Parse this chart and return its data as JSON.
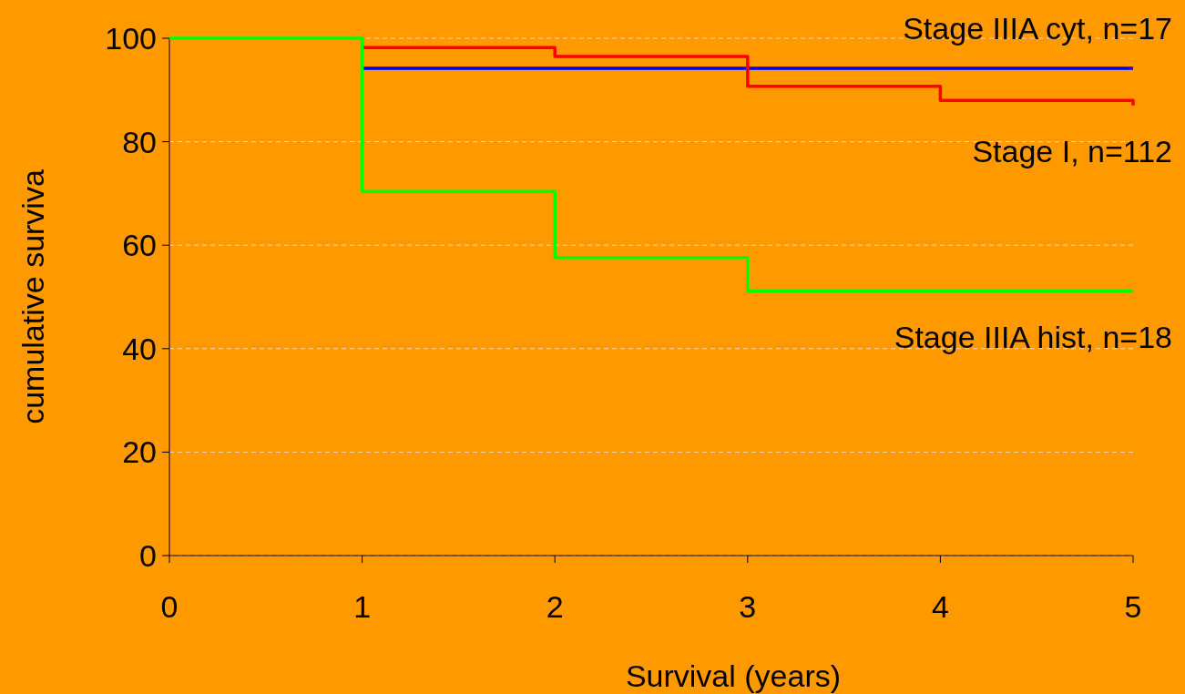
{
  "chart_data": {
    "type": "step",
    "xlabel": "Survival (years)",
    "ylabel": "cumulative surviva",
    "xlim": [
      0,
      5
    ],
    "xticks": [
      0,
      1,
      2,
      3,
      4,
      5
    ],
    "ylim": [
      0,
      100
    ],
    "yticks": [
      0,
      20,
      40,
      60,
      80,
      100
    ],
    "grid": "y",
    "series": [
      {
        "name": "Stage IIIA cyt, n=17",
        "color": "#0000ff",
        "x": [
          1,
          5
        ],
        "values": [
          94.2,
          94.2
        ]
      },
      {
        "name": "Stage I, n=112",
        "color": "#ff0000",
        "x": [
          1,
          2,
          3,
          4,
          5
        ],
        "values": [
          98.2,
          96.5,
          90.7,
          88,
          87
        ]
      },
      {
        "name": "Stage IIIA hist, n=18",
        "color": "#00ff00",
        "x": [
          0,
          1,
          2,
          3,
          5
        ],
        "values": [
          100,
          70.4,
          57.6,
          51.1,
          51.1
        ]
      }
    ]
  }
}
